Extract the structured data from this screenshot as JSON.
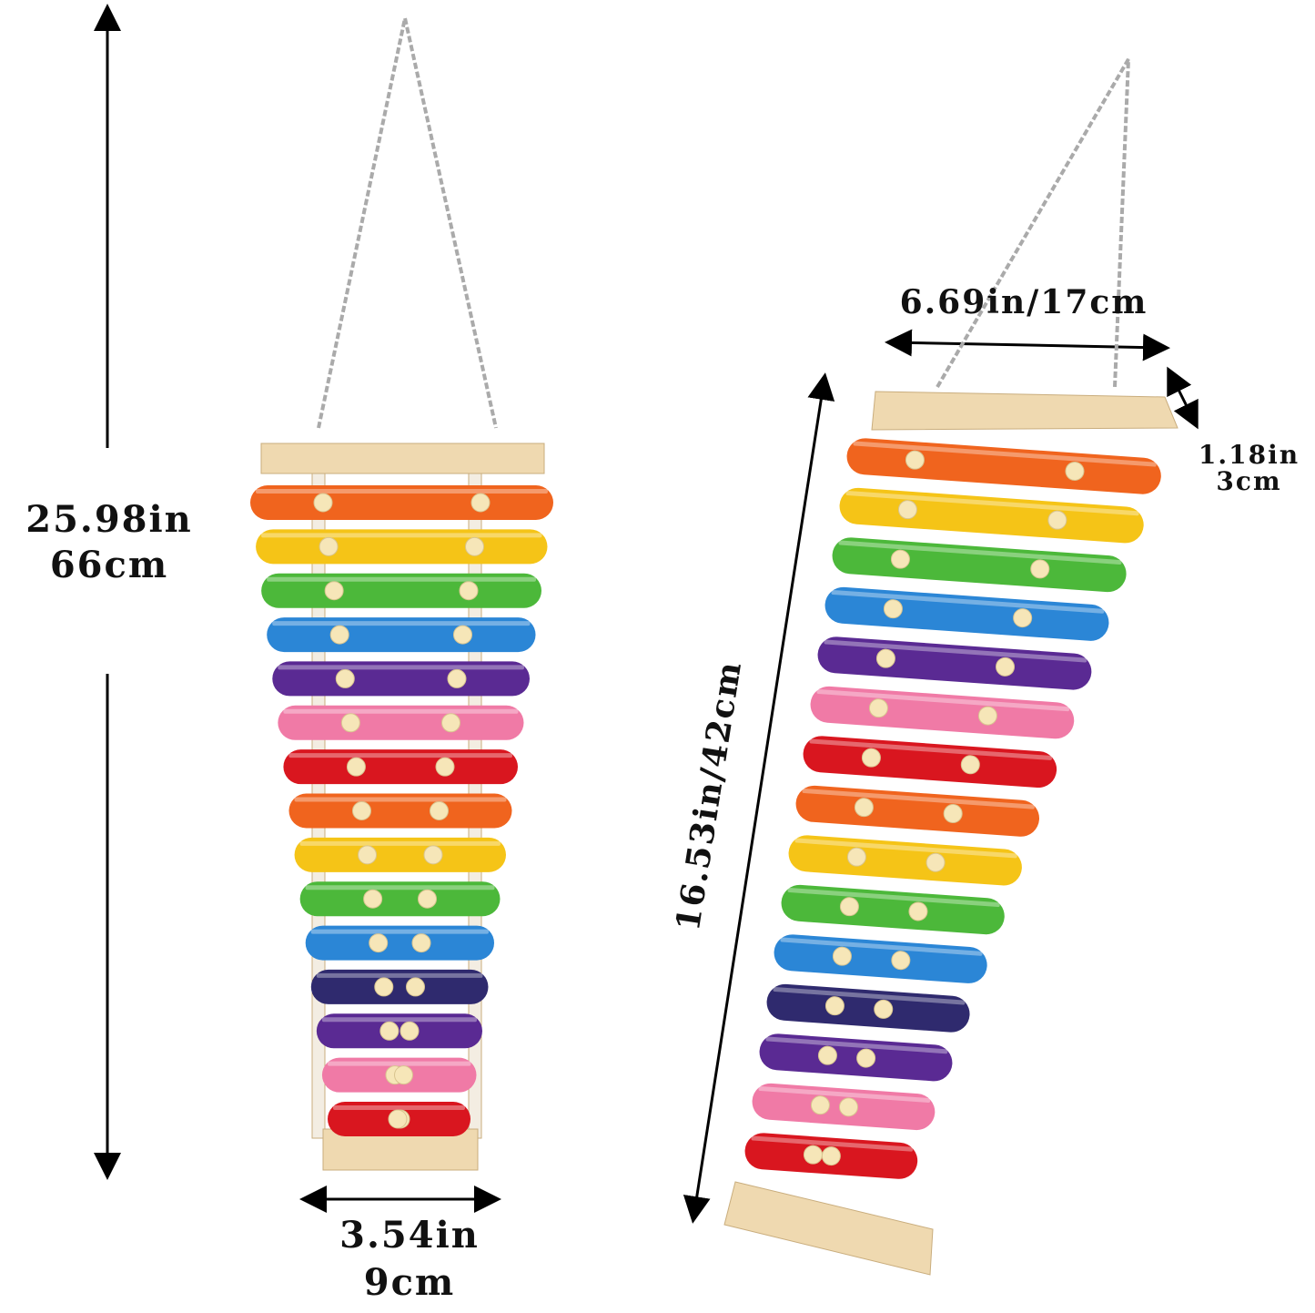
{
  "labels": {
    "total_height_in": "25.98in",
    "total_height_cm": "66cm",
    "bottom_width_in": "3.54in",
    "bottom_width_cm": "9cm",
    "top_width": "6.69in/17cm",
    "depth_in": "1.18in",
    "depth_cm": "3cm",
    "body_length": "16.53in/42cm"
  },
  "bar_colors_left": [
    "#f0641e",
    "#f5c417",
    "#4cb83a",
    "#2b86d6",
    "#5a2a93",
    "#f07aa6",
    "#d9161f",
    "#f0641e",
    "#f5c417",
    "#4cb83a",
    "#2b86d6",
    "#2f2a6e",
    "#5a2a93",
    "#f07aa6",
    "#d9161f"
  ],
  "bar_colors_right": [
    "#f0641e",
    "#f5c417",
    "#4cb83a",
    "#2b86d6",
    "#5a2a93",
    "#f07aa6",
    "#d9161f",
    "#f0641e",
    "#f5c417",
    "#4cb83a",
    "#2b86d6",
    "#2f2a6e",
    "#5a2a93",
    "#f07aa6",
    "#d9161f"
  ],
  "colors": {
    "wood": "#efd9b0",
    "peg": "#f6e6b8",
    "chain": "#a9a9a9"
  }
}
